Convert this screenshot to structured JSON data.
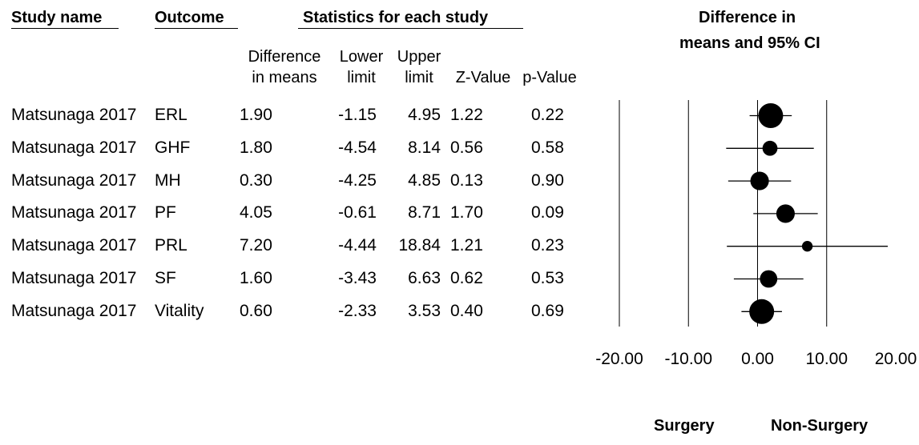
{
  "headers": {
    "study_name": "Study name",
    "outcome": "Outcome",
    "statistics": "Statistics for each study",
    "plot_title_line1": "Difference in",
    "plot_title_line2": "means and 95% CI"
  },
  "columns": {
    "diff_line1": "Difference",
    "diff_line2": "in means",
    "lower_line1": "Lower",
    "lower_line2": "limit",
    "upper_line1": "Upper",
    "upper_line2": "limit",
    "z_value": "Z-Value",
    "p_value": "p-Value"
  },
  "rows": [
    {
      "study": "Matsunaga 2017",
      "outcome": "ERL",
      "diff": "1.90",
      "lower": "-1.15",
      "upper": "4.95",
      "z": "1.22",
      "p": "0.22"
    },
    {
      "study": "Matsunaga 2017",
      "outcome": "GHF",
      "diff": "1.80",
      "lower": "-4.54",
      "upper": "8.14",
      "z": "0.56",
      "p": "0.58"
    },
    {
      "study": "Matsunaga 2017",
      "outcome": "MH",
      "diff": "0.30",
      "lower": "-4.25",
      "upper": "4.85",
      "z": "0.13",
      "p": "0.90"
    },
    {
      "study": "Matsunaga 2017",
      "outcome": "PF",
      "diff": "4.05",
      "lower": "-0.61",
      "upper": "8.71",
      "z": "1.70",
      "p": "0.09"
    },
    {
      "study": "Matsunaga 2017",
      "outcome": "PRL",
      "diff": "7.20",
      "lower": "-4.44",
      "upper": "18.84",
      "z": "1.21",
      "p": "0.23"
    },
    {
      "study": "Matsunaga 2017",
      "outcome": "SF",
      "diff": "1.60",
      "lower": "-3.43",
      "upper": "6.63",
      "z": "0.62",
      "p": "0.53"
    },
    {
      "study": "Matsunaga 2017",
      "outcome": "Vitality",
      "diff": "0.60",
      "lower": "-2.33",
      "upper": "3.53",
      "z": "0.40",
      "p": "0.69"
    }
  ],
  "chart_data": {
    "type": "scatter",
    "title": "Difference in means and 95% CI",
    "xlim": [
      -20,
      20
    ],
    "x_ticks": [
      "-20.00",
      "-10.00",
      "0.00",
      "10.00",
      "20.00"
    ],
    "x_tick_values": [
      -20,
      -10,
      0,
      10,
      20
    ],
    "favours_left": "Surgery",
    "favours_right": "Non-Surgery",
    "points": [
      {
        "outcome": "ERL",
        "mean": 1.9,
        "lower": -1.15,
        "upper": 4.95,
        "weight": 1.0
      },
      {
        "outcome": "GHF",
        "mean": 1.8,
        "lower": -4.54,
        "upper": 8.14,
        "weight": 0.24
      },
      {
        "outcome": "MH",
        "mean": 0.3,
        "lower": -4.25,
        "upper": 4.85,
        "weight": 0.45
      },
      {
        "outcome": "PF",
        "mean": 4.05,
        "lower": -0.61,
        "upper": 8.71,
        "weight": 0.45
      },
      {
        "outcome": "PRL",
        "mean": 7.2,
        "lower": -4.44,
        "upper": 18.84,
        "weight": 0.07
      },
      {
        "outcome": "SF",
        "mean": 1.6,
        "lower": -3.43,
        "upper": 6.63,
        "weight": 0.38
      },
      {
        "outcome": "Vitality",
        "mean": 0.6,
        "lower": -2.33,
        "upper": 3.53,
        "weight": 1.0
      }
    ]
  }
}
